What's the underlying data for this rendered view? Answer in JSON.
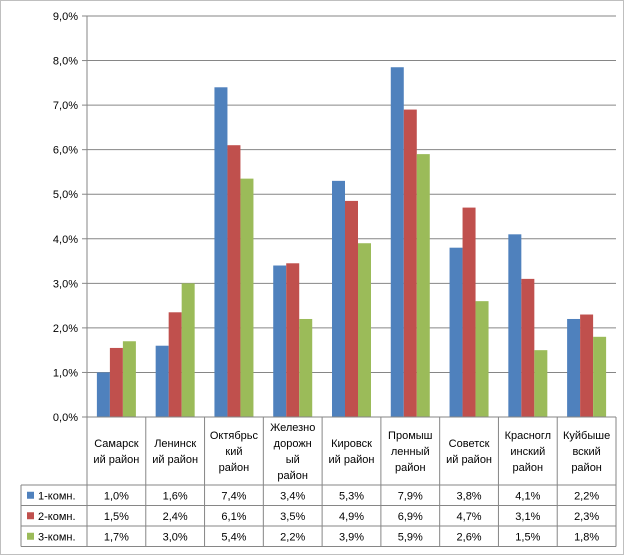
{
  "chart_data": {
    "type": "bar",
    "title": "",
    "xlabel": "",
    "ylabel": "",
    "ylim": [
      0,
      9
    ],
    "y_ticks": [
      "0,0%",
      "1,0%",
      "2,0%",
      "3,0%",
      "4,0%",
      "5,0%",
      "6,0%",
      "7,0%",
      "8,0%",
      "9,0%"
    ],
    "grid": true,
    "legend": "data-table",
    "categories": [
      [
        "Самарск",
        "ий район"
      ],
      [
        "Ленинск",
        "ий район"
      ],
      [
        "Октябрьс",
        "кий",
        "район"
      ],
      [
        "Железно",
        "дорожн",
        "ый",
        "район"
      ],
      [
        "Кировск",
        "ий район"
      ],
      [
        "Промыш",
        "ленный",
        "район"
      ],
      [
        "Советск",
        "ий район"
      ],
      [
        "Красногл",
        "инский",
        "район"
      ],
      [
        "Куйбыше",
        "вский",
        "район"
      ]
    ],
    "series": [
      {
        "name": "1-комн.",
        "color": "#4f81bd",
        "values": [
          1.0,
          1.6,
          7.4,
          3.4,
          5.3,
          7.85,
          3.8,
          4.1,
          2.2
        ],
        "labels": [
          "1,0%",
          "1,6%",
          "7,4%",
          "3,4%",
          "5,3%",
          "7,9%",
          "3,8%",
          "4,1%",
          "2,2%"
        ]
      },
      {
        "name": "2-комн.",
        "color": "#c0504d",
        "values": [
          1.55,
          2.35,
          6.1,
          3.45,
          4.85,
          6.9,
          4.7,
          3.1,
          2.3
        ],
        "labels": [
          "1,5%",
          "2,4%",
          "6,1%",
          "3,5%",
          "4,9%",
          "6,9%",
          "4,7%",
          "3,1%",
          "2,3%"
        ]
      },
      {
        "name": "3-комн.",
        "color": "#9bbb59",
        "values": [
          1.7,
          3.0,
          5.35,
          2.2,
          3.9,
          5.9,
          2.6,
          1.5,
          1.8
        ],
        "labels": [
          "1,7%",
          "3,0%",
          "5,4%",
          "2,2%",
          "3,9%",
          "5,9%",
          "2,6%",
          "1,5%",
          "1,8%"
        ]
      }
    ]
  }
}
